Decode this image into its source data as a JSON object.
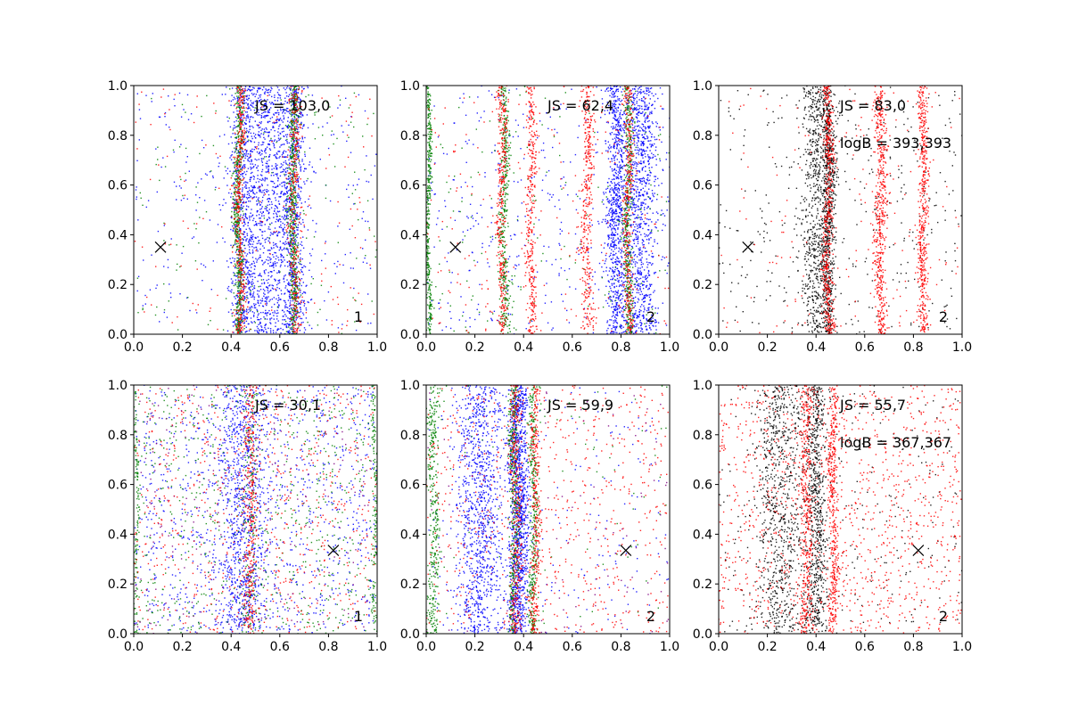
{
  "chart_data": [
    {
      "type": "scatter",
      "xlim": [
        0,
        1
      ],
      "ylim": [
        0,
        1
      ],
      "xticks": [
        "0.0",
        "0.2",
        "0.4",
        "0.6",
        "0.8",
        "1.0"
      ],
      "yticks": [
        "0.0",
        "0.2",
        "0.4",
        "0.6",
        "0.8",
        "1.0"
      ],
      "annotations": {
        "js": "JS = 103,0",
        "logb": "",
        "corner": "1"
      },
      "marker": {
        "symbol": "x",
        "x": 0.11,
        "y": 0.35
      },
      "series": [
        {
          "color": "#0000ff",
          "count": 2600,
          "bands": [
            {
              "center": 0.55,
              "width": 0.08
            },
            {
              "center": 0.45,
              "width": 0.06
            },
            {
              "center": 0.65,
              "width": 0.06
            }
          ],
          "background": 0.12
        },
        {
          "color": "#008000",
          "count": 1300,
          "bands": [
            {
              "center": 0.43,
              "width": 0.018
            },
            {
              "center": 0.655,
              "width": 0.02
            }
          ],
          "background": 0.12
        },
        {
          "color": "#ff0000",
          "count": 900,
          "bands": [
            {
              "center": 0.435,
              "width": 0.02
            },
            {
              "center": 0.66,
              "width": 0.025
            }
          ],
          "background": 0.2
        }
      ]
    },
    {
      "type": "scatter",
      "xlim": [
        0,
        1
      ],
      "ylim": [
        0,
        1
      ],
      "xticks": [
        "0.0",
        "0.2",
        "0.4",
        "0.6",
        "0.8",
        "1.0"
      ],
      "yticks": [
        "0.0",
        "0.2",
        "0.4",
        "0.6",
        "0.8",
        "1.0"
      ],
      "annotations": {
        "js": "JS = 62,4",
        "logb": "",
        "corner": "2"
      },
      "marker": {
        "symbol": "x",
        "x": 0.12,
        "y": 0.35
      },
      "series": [
        {
          "color": "#0000ff",
          "count": 2200,
          "bands": [
            {
              "center": 0.88,
              "width": 0.07
            },
            {
              "center": 0.78,
              "width": 0.04
            }
          ],
          "background": 0.2
        },
        {
          "color": "#008000",
          "count": 1400,
          "bands": [
            {
              "center": 0.83,
              "width": 0.018
            },
            {
              "center": 0.01,
              "width": 0.01
            },
            {
              "center": 0.32,
              "width": 0.02
            }
          ],
          "background": 0.12
        },
        {
          "color": "#ff0000",
          "count": 1600,
          "bands": [
            {
              "center": 0.43,
              "width": 0.02
            },
            {
              "center": 0.66,
              "width": 0.025
            },
            {
              "center": 0.83,
              "width": 0.02
            },
            {
              "center": 0.31,
              "width": 0.02
            }
          ],
          "background": 0.12
        }
      ]
    },
    {
      "type": "scatter",
      "xlim": [
        0,
        1
      ],
      "ylim": [
        0,
        1
      ],
      "xticks": [
        "0.0",
        "0.2",
        "0.4",
        "0.6",
        "0.8",
        "1.0"
      ],
      "yticks": [
        "0.0",
        "0.2",
        "0.4",
        "0.6",
        "0.8",
        "1.0"
      ],
      "annotations": {
        "js": "JS = 83,0",
        "logb": "logB = 393,393",
        "corner": "2"
      },
      "marker": {
        "symbol": "x",
        "x": 0.12,
        "y": 0.35
      },
      "series": [
        {
          "color": "#000000",
          "count": 1800,
          "bands": [
            {
              "center": 0.4,
              "width": 0.06
            },
            {
              "center": 0.45,
              "width": 0.03
            }
          ],
          "background": 0.22
        },
        {
          "color": "#ff0000",
          "count": 1700,
          "bands": [
            {
              "center": 0.45,
              "width": 0.02
            },
            {
              "center": 0.665,
              "width": 0.025
            },
            {
              "center": 0.84,
              "width": 0.02
            }
          ],
          "background": 0.1
        }
      ]
    },
    {
      "type": "scatter",
      "xlim": [
        0,
        1
      ],
      "ylim": [
        0,
        1
      ],
      "xticks": [
        "0.0",
        "0.2",
        "0.4",
        "0.6",
        "0.8",
        "1.0"
      ],
      "yticks": [
        "0.0",
        "0.2",
        "0.4",
        "0.6",
        "0.8",
        "1.0"
      ],
      "annotations": {
        "js": "JS = 30,1",
        "logb": "",
        "corner": "1"
      },
      "marker": {
        "symbol": "x",
        "x": 0.82,
        "y": 0.335
      },
      "series": [
        {
          "color": "#0000ff",
          "count": 1900,
          "bands": [
            {
              "center": 0.45,
              "width": 0.1
            }
          ],
          "background": 0.55
        },
        {
          "color": "#008000",
          "count": 1100,
          "bands": [
            {
              "center": 0.48,
              "width": 0.03
            },
            {
              "center": 0.99,
              "width": 0.01
            },
            {
              "center": 0.01,
              "width": 0.01
            }
          ],
          "background": 0.6
        },
        {
          "color": "#ff0000",
          "count": 1000,
          "bands": [
            {
              "center": 0.48,
              "width": 0.03
            }
          ],
          "background": 0.65
        },
        {
          "color": "#800080",
          "count": 250,
          "bands": [],
          "background": 1.0
        }
      ]
    },
    {
      "type": "scatter",
      "xlim": [
        0,
        1
      ],
      "ylim": [
        0,
        1
      ],
      "xticks": [
        "0.0",
        "0.2",
        "0.4",
        "0.6",
        "0.8",
        "1.0"
      ],
      "yticks": [
        "0.0",
        "0.2",
        "0.4",
        "0.6",
        "0.8",
        "1.0"
      ],
      "annotations": {
        "js": "JS = 59,9",
        "logb": "",
        "corner": "2"
      },
      "marker": {
        "symbol": "x",
        "x": 0.82,
        "y": 0.335
      },
      "series": [
        {
          "color": "#0000ff",
          "count": 2400,
          "bands": [
            {
              "center": 0.22,
              "width": 0.1
            },
            {
              "center": 0.38,
              "width": 0.04
            }
          ],
          "background": 0.08
        },
        {
          "color": "#008000",
          "count": 1200,
          "bands": [
            {
              "center": 0.03,
              "width": 0.025
            },
            {
              "center": 0.36,
              "width": 0.02
            },
            {
              "center": 0.44,
              "width": 0.02
            }
          ],
          "background": 0.08
        },
        {
          "color": "#ff0000",
          "count": 1300,
          "bands": [
            {
              "center": 0.37,
              "width": 0.025
            },
            {
              "center": 0.45,
              "width": 0.02
            }
          ],
          "background": 0.5
        },
        {
          "color": "#800080",
          "count": 120,
          "bands": [],
          "background": 1.0
        }
      ]
    },
    {
      "type": "scatter",
      "xlim": [
        0,
        1
      ],
      "ylim": [
        0,
        1
      ],
      "xticks": [
        "0.0",
        "0.2",
        "0.4",
        "0.6",
        "0.8",
        "1.0"
      ],
      "yticks": [
        "0.0",
        "0.2",
        "0.4",
        "0.6",
        "0.8",
        "1.0"
      ],
      "annotations": {
        "js": "JS = 55,7",
        "logb": "logB = 367,367",
        "corner": "2"
      },
      "marker": {
        "symbol": "x",
        "x": 0.82,
        "y": 0.335
      },
      "series": [
        {
          "color": "#000000",
          "count": 1800,
          "bands": [
            {
              "center": 0.25,
              "width": 0.1
            },
            {
              "center": 0.4,
              "width": 0.05
            }
          ],
          "background": 0.15
        },
        {
          "color": "#ff0000",
          "count": 2000,
          "bands": [
            {
              "center": 0.36,
              "width": 0.025
            },
            {
              "center": 0.47,
              "width": 0.02
            }
          ],
          "background": 0.6
        }
      ]
    }
  ]
}
